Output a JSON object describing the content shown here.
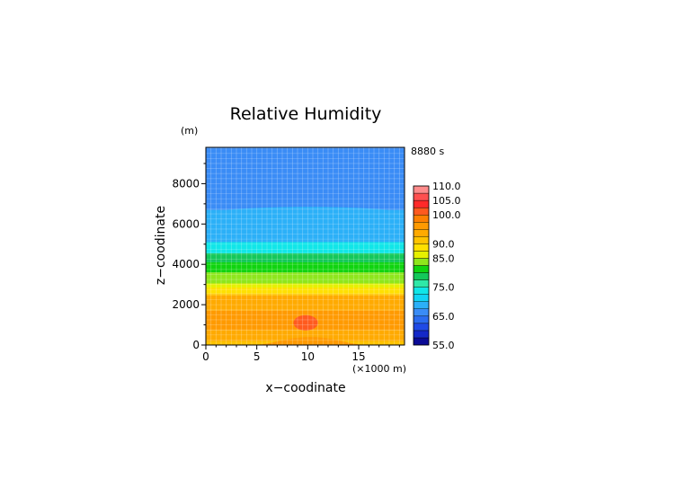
{
  "chart_data": {
    "type": "heatmap",
    "title": "Relative Humidity",
    "xlabel": "x−coodinate",
    "ylabel": "z−coodinate",
    "y_unit": "(m)",
    "x_unit": "(×1000 m)",
    "time_label": "8880 s",
    "xlim": [
      0,
      19.5
    ],
    "ylim": [
      0,
      9800
    ],
    "x_ticks": [
      0,
      5,
      10,
      15
    ],
    "x_tick_labels": [
      "0",
      "5",
      "10",
      "15"
    ],
    "y_ticks": [
      0,
      2000,
      4000,
      6000,
      8000
    ],
    "y_tick_labels": [
      "0",
      "2000",
      "4000",
      "6000",
      "8000"
    ],
    "grid": true,
    "colorbar_levels": [
      55,
      57.5,
      60,
      62.5,
      65,
      67.5,
      70,
      72.5,
      75,
      77.5,
      80,
      82.5,
      85,
      87.5,
      90,
      92.5,
      95,
      97.5,
      100,
      102.5,
      105,
      107.5,
      110
    ],
    "colorbar_colors": [
      "#0b0b96",
      "#1428c8",
      "#1f4ae6",
      "#2b6cf0",
      "#3a8cf6",
      "#2bb0f8",
      "#11d4f5",
      "#10e6e8",
      "#2fe8a8",
      "#14c85a",
      "#0fd40f",
      "#8ee61c",
      "#e6f000",
      "#ffe000",
      "#ffc300",
      "#ffaa00",
      "#ff9a00",
      "#ff8000",
      "#ff5a1e",
      "#ff2a2a",
      "#ff5050",
      "#ff8c8c",
      "#ffbcbc"
    ],
    "colorbar_tick_labels": [
      "110.0",
      "105.0",
      "100.0",
      "90.0",
      "85.0",
      "75.0",
      "65.0",
      "55.0"
    ],
    "colorbar_tick_values": [
      110,
      105,
      100,
      90,
      85,
      75,
      65,
      55
    ],
    "bands": [
      {
        "z_from": 0,
        "z_to": 200,
        "value": 90
      },
      {
        "z_from": 200,
        "z_to": 750,
        "value": 93.5
      },
      {
        "z_from": 750,
        "z_to": 1700,
        "value": 96
      },
      {
        "z_from": 1700,
        "z_to": 2450,
        "value": 93.5
      },
      {
        "z_from": 2450,
        "z_to": 2550,
        "value": 91
      },
      {
        "z_from": 2550,
        "z_to": 2850,
        "value": 88
      },
      {
        "z_from": 2850,
        "z_to": 3050,
        "value": 86
      },
      {
        "z_from": 3050,
        "z_to": 3600,
        "value": 83
      },
      {
        "z_from": 3600,
        "z_to": 4100,
        "value": 81
      },
      {
        "z_from": 4100,
        "z_to": 4550,
        "value": 78
      },
      {
        "z_from": 4550,
        "z_to": 5100,
        "value": 73
      },
      {
        "z_from": 5100,
        "z_to": 6700,
        "value": 69
      },
      {
        "z_from": 6700,
        "z_to": 9800,
        "value": 66
      }
    ],
    "features": [
      {
        "kind": "dome",
        "x_from": 4.5,
        "x_to": 16,
        "z_top": 400,
        "value": 96
      },
      {
        "kind": "blob",
        "x_center": 9.8,
        "z_center": 1100,
        "x_radius": 1.2,
        "z_radius": 380,
        "value": 101
      },
      {
        "kind": "bump",
        "x_from": 2,
        "x_to": 18,
        "z_top": 6900,
        "base": 6700,
        "value": 69
      }
    ]
  }
}
